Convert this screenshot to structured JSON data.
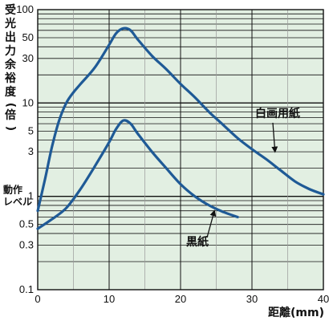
{
  "chart_data": {
    "type": "line",
    "title": "",
    "xlabel": "距離(mm)",
    "ylabel": "受光出力余裕度(倍)",
    "x_scale": "linear",
    "y_scale": "log",
    "xlim": [
      0,
      40
    ],
    "ylim": [
      0.1,
      100
    ],
    "x_ticks": [
      "0",
      "10",
      "20",
      "30",
      "40"
    ],
    "y_ticks": [
      {
        "value": 0.1,
        "label": "0.1"
      },
      {
        "value": 0.3,
        "label": "0.3"
      },
      {
        "value": 0.5,
        "label": "0.5"
      },
      {
        "value": 1,
        "label": "1"
      },
      {
        "value": 3,
        "label": "3"
      },
      {
        "value": 5,
        "label": "5"
      },
      {
        "value": 10,
        "label": "10"
      },
      {
        "value": 30,
        "label": "30"
      },
      {
        "value": 50,
        "label": "50"
      },
      {
        "value": 100,
        "label": "100"
      }
    ],
    "grid": true,
    "operating_level": {
      "value": 1,
      "label_lines": [
        "動作",
        "レベル"
      ]
    },
    "series": [
      {
        "name": "白画用紙",
        "color": "#1f5a96",
        "x": [
          0,
          1,
          2,
          3,
          4,
          5,
          6,
          8,
          10,
          11,
          12,
          13,
          14,
          16,
          18,
          20,
          22,
          24,
          26,
          28,
          30,
          32,
          34,
          36,
          38,
          40
        ],
        "y": [
          0.7,
          1.5,
          3.4,
          6.5,
          10,
          13,
          16,
          24,
          42,
          56,
          63,
          60,
          48,
          32,
          23,
          16,
          11.5,
          8,
          5.8,
          4.2,
          3.2,
          2.5,
          1.9,
          1.45,
          1.2,
          1.05
        ]
      },
      {
        "name": "黒紙",
        "color": "#1f5a96",
        "x": [
          0,
          2,
          4,
          6,
          8,
          10,
          11,
          12,
          13,
          14,
          16,
          18,
          20,
          22,
          24,
          26,
          28
        ],
        "y": [
          0.45,
          0.57,
          0.75,
          1.2,
          2.1,
          3.8,
          5.3,
          6.5,
          6.0,
          4.7,
          3.0,
          2.0,
          1.35,
          1.0,
          0.8,
          0.68,
          0.6
        ]
      }
    ],
    "annotations": [
      {
        "text": "白画用紙",
        "points_to": [
          33,
          2.8
        ]
      },
      {
        "text": "黒紙",
        "points_to": [
          24.5,
          0.75
        ]
      }
    ]
  },
  "background_color": "#e2efe2"
}
